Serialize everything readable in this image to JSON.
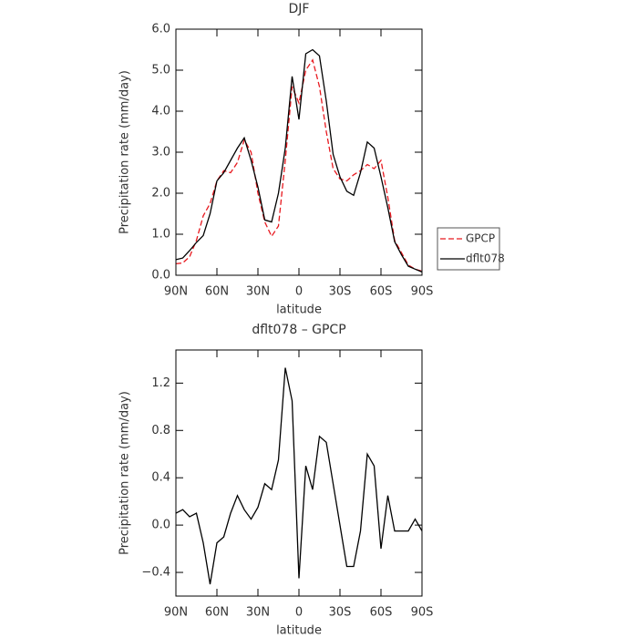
{
  "chart_data": [
    {
      "type": "line",
      "title": "DJF",
      "xlabel": "latitude",
      "ylabel": "Precipitation rate (mm/day)",
      "x": [
        90,
        85,
        80,
        75,
        70,
        65,
        60,
        55,
        50,
        45,
        40,
        35,
        30,
        25,
        20,
        15,
        10,
        5,
        0,
        -5,
        -10,
        -15,
        -20,
        -25,
        -30,
        -35,
        -40,
        -45,
        -50,
        -55,
        -60,
        -65,
        -70,
        -75,
        -80,
        -85,
        -90
      ],
      "xlim": [
        90,
        -90
      ],
      "xticks": [
        {
          "value": 90,
          "label": "90N"
        },
        {
          "value": 60,
          "label": "60N"
        },
        {
          "value": 30,
          "label": "30N"
        },
        0,
        {
          "value": -30,
          "label": "30S"
        },
        {
          "value": -60,
          "label": "60S"
        },
        {
          "value": -90,
          "label": "90S"
        }
      ],
      "ylim": [
        0,
        6
      ],
      "yticks": [
        {
          "value": 0,
          "label": "0.0"
        },
        {
          "value": 1,
          "label": "1.0"
        },
        {
          "value": 2,
          "label": "2.0"
        },
        {
          "value": 3,
          "label": "3.0"
        },
        {
          "value": 4,
          "label": "4.0"
        },
        {
          "value": 5,
          "label": "5.0"
        },
        {
          "value": 6,
          "label": "6.0"
        }
      ],
      "legend": "right",
      "series": [
        {
          "name": "GPCP",
          "color": "#e8191f",
          "line_style": "dashed",
          "values": [
            0.28,
            0.3,
            0.45,
            0.85,
            1.45,
            1.75,
            2.3,
            2.55,
            2.5,
            2.75,
            3.3,
            3.0,
            2.0,
            1.3,
            0.95,
            1.2,
            2.8,
            4.6,
            4.2,
            5.0,
            5.25,
            4.6,
            3.5,
            2.6,
            2.35,
            2.3,
            2.45,
            2.55,
            2.7,
            2.6,
            2.8,
            1.9,
            0.85,
            0.55,
            0.25,
            0.15,
            0.1
          ]
        },
        {
          "name": "dflt078",
          "color": "#000000",
          "line_style": "solid",
          "values": [
            0.38,
            0.42,
            0.6,
            0.8,
            0.97,
            1.5,
            2.3,
            2.5,
            2.8,
            3.1,
            3.35,
            2.8,
            2.15,
            1.35,
            1.3,
            2.0,
            3.1,
            4.85,
            3.8,
            5.4,
            5.5,
            5.35,
            4.25,
            2.95,
            2.4,
            2.05,
            1.95,
            2.5,
            3.25,
            3.1,
            2.4,
            1.65,
            0.82,
            0.5,
            0.22,
            0.15,
            0.08
          ]
        }
      ]
    },
    {
      "type": "line",
      "title": "dflt078 – GPCP",
      "xlabel": "latitude",
      "ylabel": "Precipitation rate (mm/day)",
      "x": [
        90,
        85,
        80,
        75,
        70,
        65,
        60,
        55,
        50,
        45,
        40,
        35,
        30,
        25,
        20,
        15,
        10,
        5,
        0,
        -5,
        -10,
        -15,
        -20,
        -25,
        -30,
        -35,
        -40,
        -45,
        -50,
        -55,
        -60,
        -65,
        -70,
        -75,
        -80,
        -85,
        -90
      ],
      "xlim": [
        90,
        -90
      ],
      "xticks": [
        {
          "value": 90,
          "label": "90N"
        },
        {
          "value": 60,
          "label": "60N"
        },
        {
          "value": 30,
          "label": "30N"
        },
        0,
        {
          "value": -30,
          "label": "30S"
        },
        {
          "value": -60,
          "label": "60S"
        },
        {
          "value": -90,
          "label": "90S"
        }
      ],
      "ylim": [
        -0.6,
        1.48
      ],
      "yticks": [
        {
          "value": -0.4,
          "label": "−0.4"
        },
        {
          "value": 0,
          "label": "0.0"
        },
        0.4,
        0.8,
        1.2
      ],
      "color": "#000000",
      "values": [
        0.1,
        0.13,
        0.07,
        0.1,
        -0.15,
        -0.5,
        -0.15,
        -0.1,
        0.1,
        0.25,
        0.13,
        0.05,
        0.15,
        0.35,
        0.3,
        0.55,
        1.33,
        1.05,
        -0.45,
        0.5,
        0.3,
        0.75,
        0.7,
        0.35,
        0.0,
        -0.35,
        -0.35,
        -0.05,
        0.6,
        0.5,
        -0.2,
        0.25,
        -0.05,
        -0.05,
        -0.05,
        0.05,
        -0.05
      ]
    }
  ]
}
